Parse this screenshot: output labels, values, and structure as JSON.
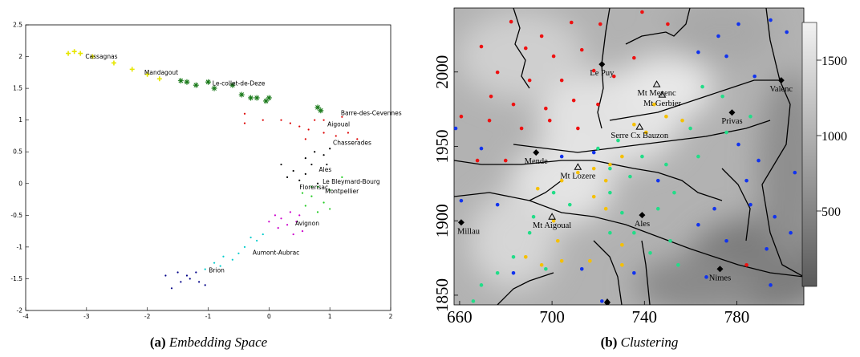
{
  "chart_data": [
    {
      "type": "scatter",
      "caption_label": "(a)",
      "caption": "Embedding Space",
      "xlim": [
        -4,
        2
      ],
      "ylim": [
        -2,
        2.5
      ],
      "xticks": [
        -4,
        -3,
        -2,
        -1,
        0,
        1,
        2
      ],
      "yticks": [
        -2,
        -1.5,
        -1,
        -0.5,
        0,
        0.5,
        1,
        1.5,
        2,
        2.5
      ],
      "series": [
        {
          "color": "#e6e600",
          "marker": "plus",
          "x": [
            -3.3,
            -3.2,
            -3.1,
            -2.9,
            -2.55,
            -2.25,
            -2.0,
            -1.8
          ],
          "y": [
            2.05,
            2.08,
            2.05,
            2.0,
            1.9,
            1.8,
            1.72,
            1.65
          ]
        },
        {
          "color": "#1a7a1a",
          "marker": "star",
          "x": [
            -1.45,
            -1.35,
            -1.2,
            -1.0,
            -0.9,
            -0.6,
            -0.45,
            -0.3,
            -0.2,
            0,
            -0.05,
            0.8,
            0.85
          ],
          "y": [
            1.62,
            1.6,
            1.55,
            1.6,
            1.5,
            1.55,
            1.4,
            1.35,
            1.35,
            1.35,
            1.3,
            1.2,
            1.15
          ]
        },
        {
          "color": "#dd0000",
          "marker": "dot",
          "x": [
            -0.4,
            -0.4,
            -0.1,
            0.2,
            0.35,
            0.5,
            0.65,
            0.75,
            0.9,
            1.1,
            1.2,
            1.3,
            1.45,
            0.6,
            0.9
          ],
          "y": [
            1.1,
            0.95,
            1.0,
            1.0,
            0.95,
            0.9,
            0.85,
            1.0,
            0.8,
            0.75,
            1.05,
            0.8,
            0.7,
            0.7,
            1.0
          ]
        },
        {
          "color": "#000000",
          "marker": "dot",
          "x": [
            0.6,
            0.75,
            0.9,
            0.2,
            0.4,
            0.6,
            0.7,
            0.95,
            0.3,
            0.5,
            0.8,
            1.0
          ],
          "y": [
            0.4,
            0.5,
            0.45,
            0.3,
            0.2,
            0.15,
            0.3,
            0.3,
            0.1,
            0.05,
            0.0,
            0.55
          ]
        },
        {
          "color": "#22cc22",
          "marker": "dot",
          "x": [
            0.8,
            1.0,
            1.2,
            0.7,
            0.9,
            0.6,
            0.8,
            1.0,
            0.55,
            0.7
          ],
          "y": [
            -0.05,
            -0.1,
            0.1,
            -0.2,
            -0.3,
            -0.35,
            -0.45,
            -0.4,
            -0.15,
            -0.05
          ]
        },
        {
          "color": "#cc00cc",
          "marker": "dot",
          "x": [
            0.1,
            0.2,
            0.35,
            0.45,
            0.5,
            0.3,
            0.15,
            0.55,
            0.4,
            0.0
          ],
          "y": [
            -0.5,
            -0.55,
            -0.45,
            -0.6,
            -0.5,
            -0.65,
            -0.7,
            -0.75,
            -0.8,
            -0.6
          ]
        },
        {
          "color": "#00cccc",
          "marker": "dot",
          "x": [
            -0.1,
            -0.2,
            -0.4,
            -0.5,
            -0.6,
            -0.8,
            -0.9,
            -0.75,
            -1.05,
            -0.3
          ],
          "y": [
            -0.8,
            -0.9,
            -1.0,
            -1.1,
            -1.2,
            -1.3,
            -1.25,
            -1.15,
            -1.35,
            -0.85
          ]
        },
        {
          "color": "#000088",
          "marker": "dot",
          "x": [
            -1.2,
            -1.3,
            -1.45,
            -1.6,
            -1.7,
            -1.15,
            -1.35,
            -1.05,
            -1.5
          ],
          "y": [
            -1.4,
            -1.5,
            -1.55,
            -1.65,
            -1.45,
            -1.55,
            -1.45,
            -1.6,
            -1.4
          ]
        }
      ],
      "annotations": [
        {
          "text": "Cassagnas",
          "x": -3.02,
          "y": 2.0
        },
        {
          "text": "Mandagout",
          "x": -2.05,
          "y": 1.75
        },
        {
          "text": "Le-collet-de-Deze",
          "x": -0.93,
          "y": 1.58
        },
        {
          "text": "Barre-des-Cevennes",
          "x": 1.18,
          "y": 1.11
        },
        {
          "text": "Aigoual",
          "x": 0.96,
          "y": 0.93
        },
        {
          "text": "Chasserades",
          "x": 1.05,
          "y": 0.64
        },
        {
          "text": "Ales",
          "x": 0.82,
          "y": 0.22
        },
        {
          "text": "Le Bleymard-Bourg",
          "x": 0.88,
          "y": 0.03
        },
        {
          "text": "Florensac",
          "x": 0.5,
          "y": -0.06
        },
        {
          "text": "Montpellier",
          "x": 0.92,
          "y": -0.12
        },
        {
          "text": "Avignon",
          "x": 0.43,
          "y": -0.63
        },
        {
          "text": "Aumont-Aubrac",
          "x": -0.27,
          "y": -1.09
        },
        {
          "text": "Brion",
          "x": -0.99,
          "y": -1.37
        }
      ]
    },
    {
      "type": "map",
      "caption_label": "(b)",
      "caption": "Clustering",
      "xlim": [
        657.6,
        809
      ],
      "ylim": [
        1843.5,
        2043
      ],
      "xticks": [
        660,
        700,
        740,
        780
      ],
      "yticks": [
        1850,
        1900,
        1950,
        2000
      ],
      "colorbar": {
        "clim": [
          0,
          1750
        ],
        "ticks": [
          500,
          1000,
          1500
        ]
      },
      "series": [
        {
          "color": "#ee1111",
          "x": [
            682.3,
            695.5,
            708.4,
            720.9,
            739.0,
            750.1,
            688.6,
            700.7,
            712.9,
            669.4,
            676.4,
            690.3,
            704.2,
            718.1,
            726.8,
            735.5,
            673.6,
            683.3,
            697.3,
            709.4,
            719.9,
            660.7,
            672.9,
            686.8,
            699.0,
            711.2,
            667.7,
            679.9,
            784.2
          ],
          "y": [
            2033.8,
            2024.1,
            2033.3,
            2032.2,
            2040.3,
            2032.2,
            2016.0,
            2010.6,
            2014.9,
            2017.1,
            1999.8,
            1994.4,
            1994.4,
            2000.9,
            1997.1,
            2009.5,
            1983.6,
            1978.2,
            1975.5,
            1980.9,
            1978.2,
            1970.1,
            1967.4,
            1962.1,
            1967.4,
            1962.1,
            1940.5,
            1940.5,
            1870.3
          ]
        },
        {
          "color": "#1133ee",
          "x": [
            772.0,
            780.7,
            794.6,
            801.6,
            763.3,
            775.5,
            787.7,
            658.3,
            669.4,
            704.2,
            718.1,
            780.7,
            789.4,
            784.2,
            805.1,
            785.9,
            796.4,
            803.3,
            660.7,
            676.4,
            745.9,
            770.3,
            763.3,
            775.5,
            735.5,
            766.8,
            794.6,
            683.3,
            712.9,
            721.6,
            792.9
          ],
          "y": [
            2024.1,
            2032.2,
            2034.9,
            2026.8,
            2013.3,
            2010.6,
            1997.1,
            1962.1,
            1948.6,
            1943.2,
            1945.9,
            1951.3,
            1940.5,
            1927.0,
            1932.4,
            1910.8,
            1902.7,
            1891.9,
            1913.5,
            1910.8,
            1927.0,
            1908.1,
            1897.3,
            1886.5,
            1864.9,
            1862.2,
            1856.8,
            1864.9,
            1867.6,
            1846.0,
            1881.1
          ]
        },
        {
          "color": "#22dd88",
          "x": [
            765.1,
            773.8,
            785.9,
            759.9,
            775.5,
            728.6,
            719.9,
            739.0,
            749.4,
            763.3,
            725.1,
            733.8,
            752.9,
            725.1,
            730.3,
            745.9,
            735.5,
            725.1,
            742.5,
            700.7,
            707.7,
            692.0,
            690.3,
            683.3,
            676.4,
            669.4,
            665.9,
            697.3,
            751.2,
            754.6
          ],
          "y": [
            1990.1,
            1983.6,
            1970.1,
            1962.1,
            1959.4,
            1954.0,
            1948.6,
            1943.2,
            1937.8,
            1943.2,
            1935.1,
            1929.7,
            1918.9,
            1918.9,
            1905.4,
            1908.1,
            1891.9,
            1891.9,
            1878.4,
            1918.9,
            1910.8,
            1902.7,
            1891.9,
            1875.7,
            1864.9,
            1856.8,
            1846.0,
            1867.6,
            1886.5,
            1870.3
          ]
        },
        {
          "color": "#f5c000",
          "x": [
            744.2,
            749.4,
            756.4,
            735.5,
            740.7,
            730.3,
            725.1,
            718.1,
            711.2,
            723.3,
            704.2,
            693.8,
            718.1,
            723.3,
            700.7,
            702.5,
            704.2,
            695.5,
            688.6,
            716.4,
            730.3,
            730.3
          ],
          "y": [
            1978.2,
            1970.1,
            1967.4,
            1964.7,
            1959.4,
            1943.2,
            1937.8,
            1935.1,
            1932.4,
            1927.0,
            1927.0,
            1921.6,
            1916.2,
            1908.1,
            1900.0,
            1886.5,
            1873.0,
            1870.3,
            1875.7,
            1873.0,
            1870.3,
            1883.8
          ]
        }
      ],
      "places": [
        {
          "text": "Le Puy",
          "marker": "diamond",
          "x": 721.6,
          "y": 2005.2
        },
        {
          "text": "Valenc",
          "marker": "diamond",
          "x": 799.2,
          "y": 1994.4
        },
        {
          "text": "Mt Mezenc",
          "marker": "triangle",
          "x": 745.3,
          "y": 1991.7
        },
        {
          "text": "Mt Gerbier",
          "marker": "triangle",
          "x": 747.7,
          "y": 1984.7
        },
        {
          "text": "Privas",
          "marker": "diamond",
          "x": 777.9,
          "y": 1972.8
        },
        {
          "text": "Serre Cx Bauzon",
          "marker": "triangle",
          "x": 737.9,
          "y": 1963.1
        },
        {
          "text": "Mende",
          "marker": "diamond",
          "x": 693.1,
          "y": 1945.9
        },
        {
          "text": "Mt Lozere",
          "marker": "triangle",
          "x": 711.2,
          "y": 1936.1
        },
        {
          "text": "Millau",
          "marker": "diamond",
          "x": 660.7,
          "y": 1898.9
        },
        {
          "text": "Mt Aigoual",
          "marker": "triangle",
          "x": 700.0,
          "y": 1902.7
        },
        {
          "text": "Ales",
          "marker": "diamond",
          "x": 739.0,
          "y": 1903.8
        },
        {
          "text": "Nimes",
          "marker": "diamond",
          "x": 772.7,
          "y": 1867.6
        }
      ]
    }
  ]
}
